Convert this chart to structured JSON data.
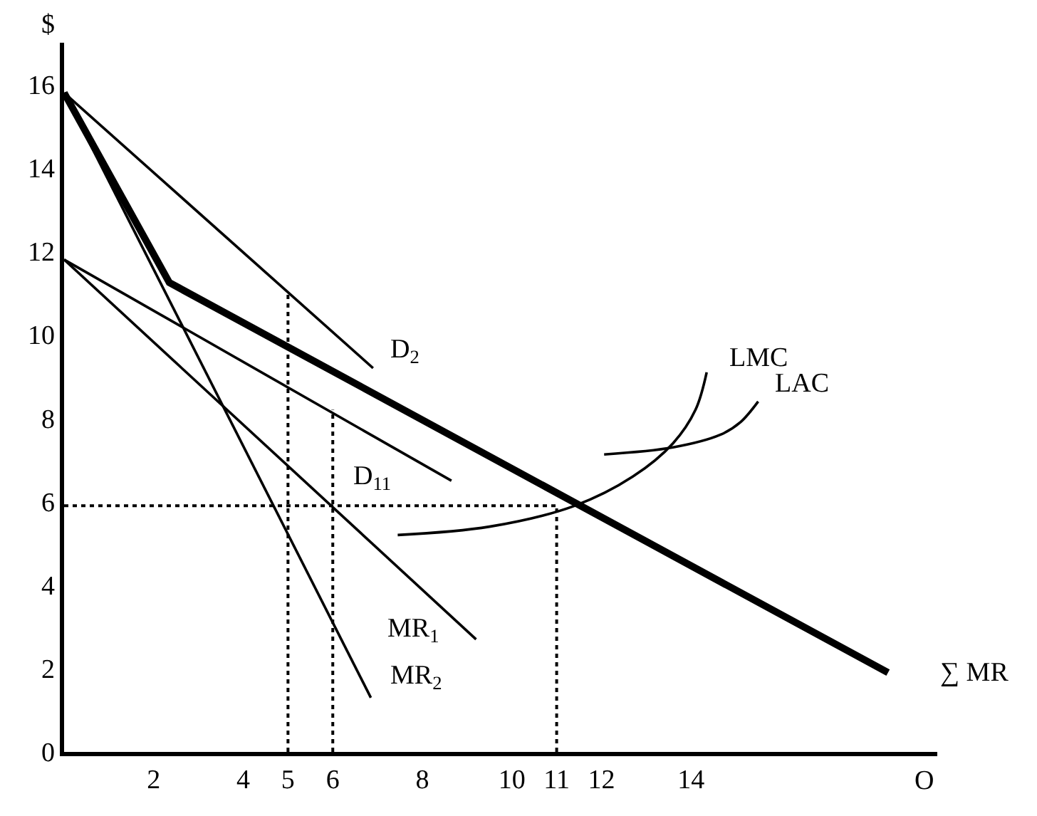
{
  "chart_data": {
    "type": "line",
    "xlabel": "O",
    "ylabel": "$",
    "xlim": [
      0,
      19.5
    ],
    "ylim": [
      0,
      17
    ],
    "xticks": [
      2,
      4,
      5,
      6,
      8,
      10,
      11,
      12,
      14
    ],
    "yticks": [
      0,
      2,
      4,
      6,
      8,
      10,
      12,
      14,
      16
    ],
    "legend": false,
    "marker": "none",
    "series": [
      {
        "name": "∑ MR",
        "color": "#000000",
        "x": [
          0,
          2.35,
          18.4
        ],
        "values": [
          15.8,
          11.25,
          1.9
        ]
      },
      {
        "name": "D$_{2}$",
        "color": "#000000",
        "x": [
          0,
          6.9
        ],
        "values": [
          15.8,
          9.2
        ]
      },
      {
        "name": "MR$_{2}$",
        "color": "#000000",
        "x": [
          0,
          6.85
        ],
        "values": [
          15.8,
          1.3
        ]
      },
      {
        "name": "D$_{11}$",
        "color": "#000000",
        "x": [
          0,
          8.65
        ],
        "values": [
          11.8,
          6.5
        ]
      },
      {
        "name": "MR$_{1}$",
        "color": "#000000",
        "x": [
          0,
          9.2
        ],
        "values": [
          11.8,
          2.7
        ]
      },
      {
        "name": "LMC",
        "color": "#000000",
        "x": [
          7.45,
          9.5,
          11.4,
          12.7,
          13.6,
          14.1,
          14.35
        ],
        "values": [
          5.2,
          5.4,
          5.9,
          6.6,
          7.4,
          8.2,
          9.1
        ]
      },
      {
        "name": "LAC",
        "color": "#000000",
        "x": [
          12.06,
          13.6,
          14.65,
          15.1,
          15.5
        ],
        "values": [
          7.13,
          7.3,
          7.6,
          7.9,
          8.4
        ]
      },
      {
        "color": "#000000",
        "line_style": "dotted",
        "x": [
          5,
          5
        ],
        "values": [
          0,
          11
        ]
      },
      {
        "color": "#000000",
        "line_style": "dotted",
        "x": [
          6,
          6
        ],
        "values": [
          0,
          8.2
        ]
      },
      {
        "color": "#000000",
        "line_style": "dotted",
        "x": [
          11,
          11
        ],
        "values": [
          0,
          5.9
        ]
      },
      {
        "color": "#000000",
        "line_style": "dotted",
        "x": [
          0,
          11
        ],
        "values": [
          5.9,
          5.9
        ]
      }
    ]
  }
}
